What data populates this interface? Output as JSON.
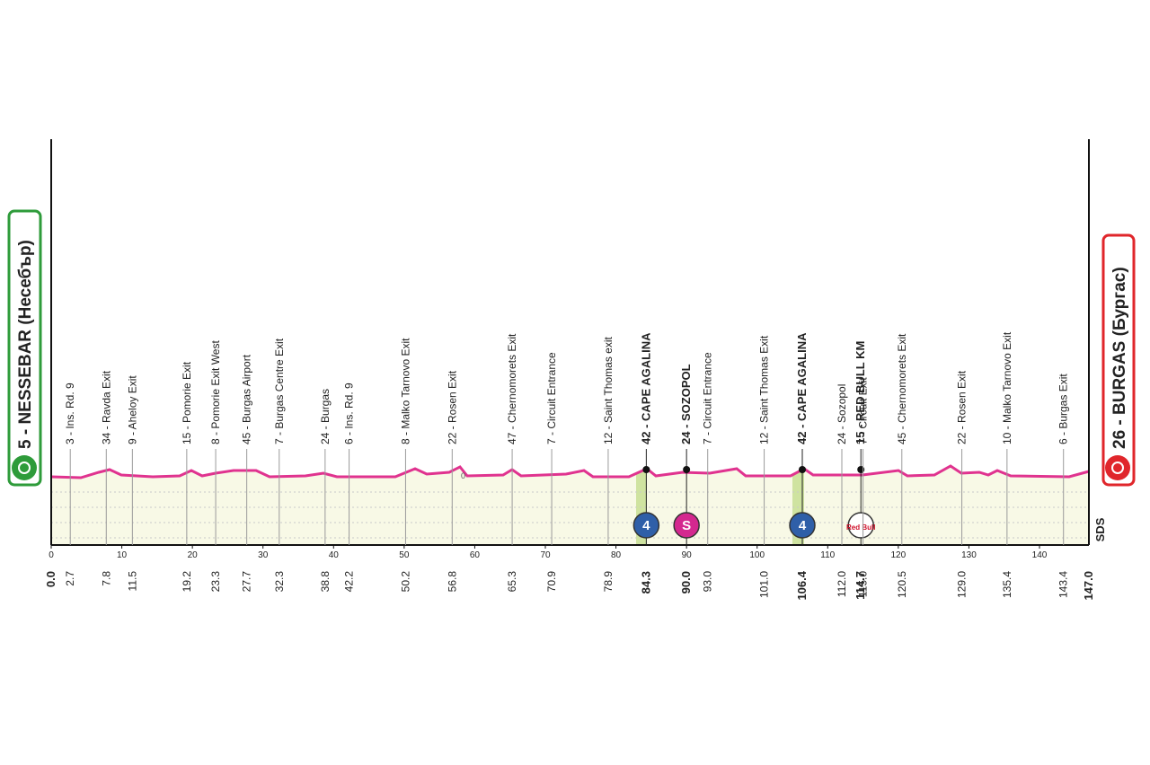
{
  "start": {
    "label": "5 - NESSEBAR (Несебър)",
    "km": "0.0"
  },
  "finish": {
    "label": "26 - BURGAS (Бургас)",
    "km": "147.0"
  },
  "axis": {
    "xlim": [
      0,
      147
    ],
    "xticks": [
      0,
      10,
      20,
      30,
      40,
      50,
      60,
      70,
      80,
      90,
      100,
      110,
      120,
      130,
      140
    ]
  },
  "profile_label": "0",
  "brand": "SDS",
  "waypoints": [
    {
      "label": "3 - Ins. Rd. 9",
      "km": "2.7"
    },
    {
      "label": "34 - Ravda Exit",
      "km": "7.8"
    },
    {
      "label": "9 - Aheloy Exit",
      "km": "11.5"
    },
    {
      "label": "15 - Pomorie Exit",
      "km": "19.2"
    },
    {
      "label": "8 - Pomorie Exit West",
      "km": "23.3"
    },
    {
      "label": "45 - Burgas Airport",
      "km": "27.7"
    },
    {
      "label": "7 - Burgas Centre Exit",
      "km": "32.3"
    },
    {
      "label": "24 - Burgas",
      "km": "38.8"
    },
    {
      "label": "6 - Ins. Rd. 9",
      "km": "42.2"
    },
    {
      "label": "8 - Malko Tarnovo Exit",
      "km": "50.2"
    },
    {
      "label": "22 - Rosen Exit",
      "km": "56.8"
    },
    {
      "label": "47 - Chernomorets Exit",
      "km": "65.3"
    },
    {
      "label": "7 - Circuit Entrance",
      "km": "70.9"
    },
    {
      "label": "12 - Saint Thomas exit",
      "km": "78.9"
    },
    {
      "label": "42 - CAPE AGALINA",
      "km": "84.3",
      "bold": true,
      "badge": {
        "kind": "climb",
        "text": "4"
      }
    },
    {
      "label": "24 - SOZOPOL",
      "km": "90.0",
      "bold": true,
      "badge": {
        "kind": "sprint",
        "text": "S"
      }
    },
    {
      "label": "7 - Circuit Entrance",
      "km": "93.0"
    },
    {
      "label": "12 - Saint Thomas Exit",
      "km": "101.0"
    },
    {
      "label": "42 - CAPE AGALINA",
      "km": "106.4",
      "bold": true,
      "badge": {
        "kind": "climb",
        "text": "4"
      }
    },
    {
      "label": "24 - Sozopol",
      "km": "112.0"
    },
    {
      "label": "15 - RED BULL KM",
      "km": "114.7",
      "bold": true,
      "badge": {
        "kind": "redbull",
        "text": "Red Bull"
      }
    },
    {
      "label": "7 - Circuit Exit",
      "km": "115.0"
    },
    {
      "label": "45 - Chernomorets Exit",
      "km": "120.5"
    },
    {
      "label": "22 - Rosen Exit",
      "km": "129.0"
    },
    {
      "label": "10 - Malko Tarnovo Exit",
      "km": "135.4"
    },
    {
      "label": "6 - Burgas Exit",
      "km": "143.4"
    }
  ]
}
